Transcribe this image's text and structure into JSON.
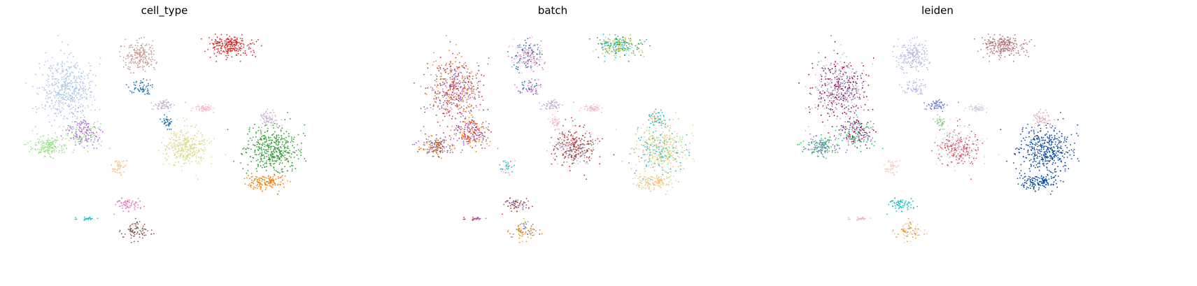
{
  "chart_data": [
    {
      "type": "scatter",
      "title": "cell_type",
      "xlabel": "",
      "ylabel": "",
      "grid": false,
      "axes": "off",
      "colors_used": [
        "#aec7e8",
        "#c49c94",
        "#d62728",
        "#1f77b4",
        "#dbdb8d",
        "#2ca02c",
        "#ff7f0e",
        "#c5b0d5",
        "#9467bd",
        "#98df8a",
        "#ffbb78",
        "#e377c2",
        "#17becf",
        "#8c564b",
        "#f7b6d2"
      ]
    },
    {
      "type": "scatter",
      "title": "batch",
      "xlabel": "",
      "ylabel": "",
      "grid": false,
      "axes": "off",
      "colors_used": [
        "#8c564b",
        "#d62728",
        "#9467bd",
        "#ff7f0e",
        "#1f77b4",
        "#e377c2",
        "#f7b6d2",
        "#17becf",
        "#bcbd22",
        "#aec7e8",
        "#dbdb8d",
        "#2ca02c",
        "#98df8a",
        "#ffbb78",
        "#c5b0d5"
      ]
    },
    {
      "type": "scatter",
      "title": "leiden",
      "xlabel": "",
      "ylabel": "",
      "grid": false,
      "axes": "off",
      "colors_used": [
        "#d4b5c0",
        "#9e0142",
        "#7b7fb8",
        "#b4bce4",
        "#c4dbb8",
        "#b5737a",
        "#0c4aa6",
        "#e6b0bc",
        "#cfd0e0",
        "#d94a5c",
        "#8fd18a",
        "#22c55e",
        "#16c0c0",
        "#e8940c",
        "#f0b0c8",
        "#f5c4b8",
        "#6e7fd8"
      ]
    }
  ]
}
